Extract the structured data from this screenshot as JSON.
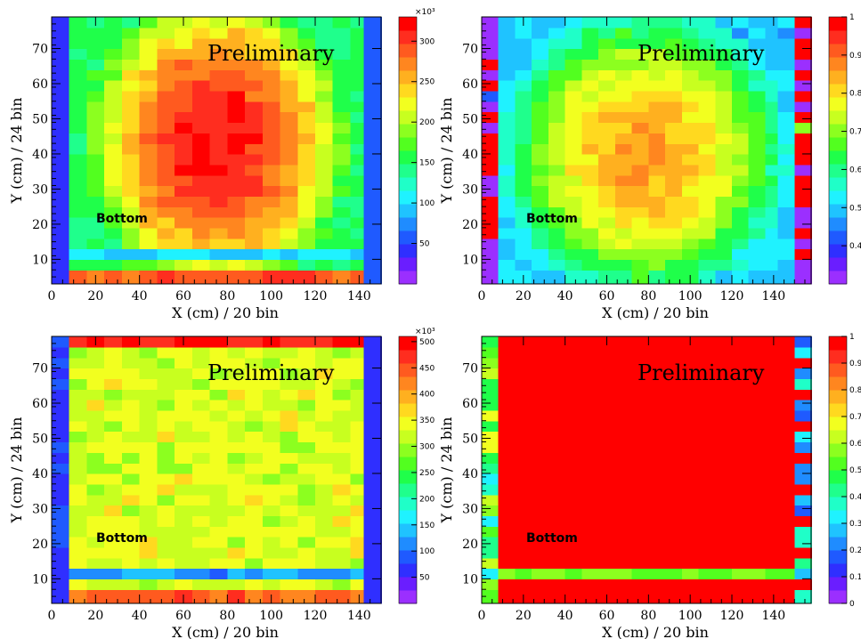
{
  "palette": [
    "#9b2fff",
    "#6a1eff",
    "#2f2fff",
    "#1f5aff",
    "#1f8cff",
    "#1fc3ff",
    "#1ff2ff",
    "#1fffc8",
    "#1fff8c",
    "#1fff4a",
    "#52ff1f",
    "#8cff1f",
    "#c8ff1f",
    "#f2ff1f",
    "#ffd91f",
    "#ffb01f",
    "#ff861f",
    "#ff5a1f",
    "#ff2d1f",
    "#ff0000"
  ],
  "chart_data": [
    {
      "type": "heatmap",
      "xlabel": "X (cm) / 20 bin",
      "ylabel": "Y (cm) / 24 bin",
      "xlim": [
        0,
        150
      ],
      "ylim": [
        3,
        79
      ],
      "xticks": [
        0,
        20,
        40,
        60,
        80,
        100,
        120,
        140
      ],
      "yticks": [
        10,
        20,
        30,
        40,
        50,
        60,
        70
      ],
      "annotation": "Preliminary",
      "side_label": "Bottom",
      "zlim": [
        0,
        330
      ],
      "zscale_label": "×10³",
      "zticks": [
        50,
        100,
        150,
        200,
        250,
        300
      ],
      "x_edges": [
        0,
        8,
        16,
        24,
        32,
        40,
        48,
        56,
        64,
        72,
        80,
        88,
        96,
        104,
        112,
        120,
        128,
        136,
        142,
        150
      ],
      "y_edges": [
        3,
        7,
        10,
        13,
        16,
        19,
        22,
        25,
        28,
        31,
        34,
        37,
        40,
        43,
        46,
        49,
        52,
        55,
        58,
        61,
        64,
        67,
        70,
        73,
        76,
        79
      ],
      "model": "blob",
      "model_params": {
        "cx": 75,
        "cy": 43,
        "rx": 68,
        "ry": 50,
        "peak": 320,
        "base": 150
      },
      "grid_on": false
    },
    {
      "type": "heatmap",
      "xlabel": "X (cm) / 20 bin",
      "ylabel": "Y (cm) / 24 bin",
      "xlim": [
        0,
        158
      ],
      "ylim": [
        3,
        79
      ],
      "xticks": [
        0,
        20,
        40,
        60,
        80,
        100,
        120,
        140
      ],
      "yticks": [
        10,
        20,
        30,
        40,
        50,
        60,
        70
      ],
      "annotation": "Preliminary",
      "side_label": "Bottom",
      "zlim": [
        0.3,
        1.0
      ],
      "zscale_label": "",
      "zticks": [
        0.4,
        0.5,
        0.6,
        0.7,
        0.8,
        0.9,
        1
      ],
      "x_edges": [
        0,
        8,
        16,
        24,
        32,
        40,
        48,
        56,
        64,
        72,
        80,
        88,
        96,
        104,
        112,
        120,
        128,
        136,
        142,
        150,
        158
      ],
      "y_edges": [
        3,
        7,
        10,
        13,
        16,
        19,
        22,
        25,
        28,
        31,
        34,
        37,
        40,
        43,
        46,
        49,
        52,
        55,
        58,
        61,
        64,
        67,
        70,
        73,
        76,
        79
      ],
      "model": "blob",
      "model_params": {
        "cx": 78,
        "cy": 40,
        "rx": 80,
        "ry": 48,
        "peak": 0.86,
        "base": 0.5
      },
      "grid_on": false
    },
    {
      "type": "heatmap",
      "xlabel": "X (cm) / 20 bin",
      "ylabel": "Y (cm) / 24 bin",
      "xlim": [
        0,
        150
      ],
      "ylim": [
        3,
        79
      ],
      "xticks": [
        0,
        20,
        40,
        60,
        80,
        100,
        120,
        140
      ],
      "yticks": [
        10,
        20,
        30,
        40,
        50,
        60,
        70
      ],
      "annotation": "Preliminary",
      "side_label": "Bottom",
      "zlim": [
        0,
        510
      ],
      "zscale_label": "×10³",
      "zticks": [
        50,
        100,
        150,
        200,
        250,
        300,
        350,
        400,
        450,
        500
      ],
      "x_edges": [
        0,
        8,
        16,
        24,
        32,
        40,
        48,
        56,
        64,
        72,
        80,
        88,
        96,
        104,
        112,
        120,
        128,
        136,
        142,
        150
      ],
      "y_edges": [
        3,
        7,
        10,
        13,
        16,
        19,
        22,
        25,
        28,
        31,
        34,
        37,
        40,
        43,
        46,
        49,
        52,
        55,
        58,
        61,
        64,
        67,
        70,
        73,
        76,
        79
      ],
      "model": "flat",
      "model_params": {
        "level": 330,
        "top": 470,
        "bottom_row": 430,
        "gap": 120
      },
      "grid_on": false
    },
    {
      "type": "heatmap",
      "xlabel": "X (cm) / 20 bin",
      "ylabel": "Y (cm) / 24 bin",
      "xlim": [
        0,
        158
      ],
      "ylim": [
        3,
        79
      ],
      "xticks": [
        0,
        20,
        40,
        60,
        80,
        100,
        120,
        140
      ],
      "yticks": [
        10,
        20,
        30,
        40,
        50,
        60,
        70
      ],
      "annotation": "Preliminary",
      "side_label": "Bottom",
      "zlim": [
        0,
        1.0
      ],
      "zscale_label": "",
      "zticks": [
        0,
        0.1,
        0.2,
        0.3,
        0.4,
        0.5,
        0.6,
        0.7,
        0.8,
        0.9,
        1
      ],
      "x_edges": [
        0,
        8,
        16,
        24,
        32,
        40,
        48,
        56,
        64,
        72,
        80,
        88,
        96,
        104,
        112,
        120,
        128,
        136,
        142,
        150,
        158
      ],
      "y_edges": [
        3,
        7,
        10,
        13,
        16,
        19,
        22,
        25,
        28,
        31,
        34,
        37,
        40,
        43,
        46,
        49,
        52,
        55,
        58,
        61,
        64,
        67,
        70,
        73,
        76,
        79
      ],
      "model": "full",
      "model_params": {
        "level": 1.0
      },
      "grid_on": false
    }
  ]
}
